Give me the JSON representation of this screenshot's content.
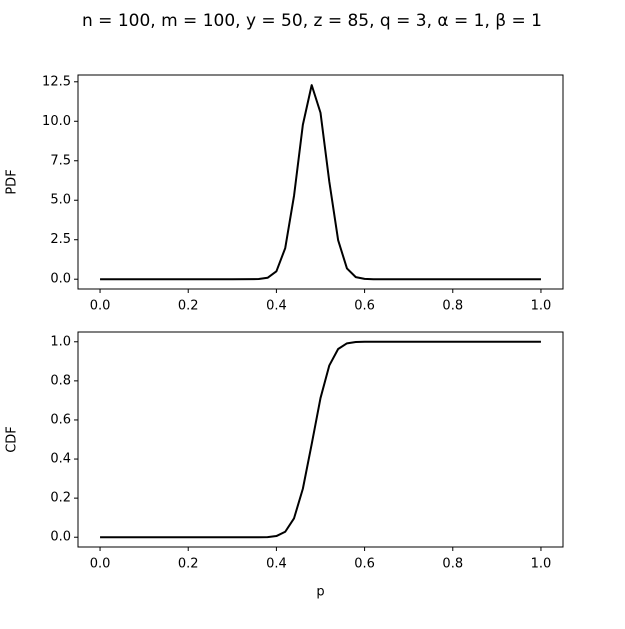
{
  "title": "n = 100, m = 100, y = 50, z = 85, q = 3, α = 1, β = 1",
  "chart_data": [
    {
      "type": "line",
      "ylabel": "PDF",
      "x": [
        0,
        0.1,
        0.2,
        0.3,
        0.36,
        0.38,
        0.4,
        0.42,
        0.44,
        0.46,
        0.48,
        0.5,
        0.52,
        0.54,
        0.56,
        0.58,
        0.6,
        0.62,
        0.7,
        0.8,
        0.9,
        1.0
      ],
      "values": [
        0,
        0,
        0,
        0,
        0.01,
        0.09,
        0.5,
        1.97,
        5.29,
        9.78,
        12.29,
        10.54,
        6.17,
        2.47,
        0.68,
        0.13,
        0.02,
        0,
        0,
        0,
        0,
        0
      ],
      "color": "#000000",
      "xlim": [
        -0.05,
        1.05
      ],
      "xticks": [
        {
          "value": 0,
          "label": "0.0"
        },
        0.2,
        0.4,
        0.6,
        0.8,
        {
          "value": 1,
          "label": "1.0"
        }
      ],
      "ylim": [
        -0.62,
        12.93
      ],
      "yticks": [
        {
          "value": 0,
          "label": "0.0"
        },
        2.5,
        {
          "value": 5,
          "label": "5.0"
        },
        7.5,
        {
          "value": 10,
          "label": "10.0"
        },
        12.5
      ]
    },
    {
      "type": "line",
      "ylabel": "CDF",
      "xlabel": "p",
      "x": [
        0,
        0.1,
        0.2,
        0.3,
        0.36,
        0.38,
        0.4,
        0.42,
        0.44,
        0.46,
        0.48,
        0.5,
        0.52,
        0.54,
        0.56,
        0.58,
        0.6,
        0.62,
        0.7,
        0.8,
        0.9,
        1.0
      ],
      "values": [
        0,
        0,
        0,
        0,
        0.0001,
        0.0008,
        0.006,
        0.028,
        0.097,
        0.248,
        0.476,
        0.712,
        0.879,
        0.963,
        0.992,
        0.9987,
        0.9999,
        1,
        1,
        1,
        1,
        1
      ],
      "color": "#000000",
      "xlim": [
        -0.05,
        1.05
      ],
      "xticks": [
        {
          "value": 0,
          "label": "0.0"
        },
        0.2,
        0.4,
        0.6,
        0.8,
        {
          "value": 1,
          "label": "1.0"
        }
      ],
      "ylim": [
        -0.05,
        1.05
      ],
      "yticks": [
        {
          "value": 0,
          "label": "0.0"
        },
        0.2,
        0.4,
        0.6,
        0.8,
        {
          "value": 1,
          "label": "1.0"
        }
      ]
    }
  ]
}
